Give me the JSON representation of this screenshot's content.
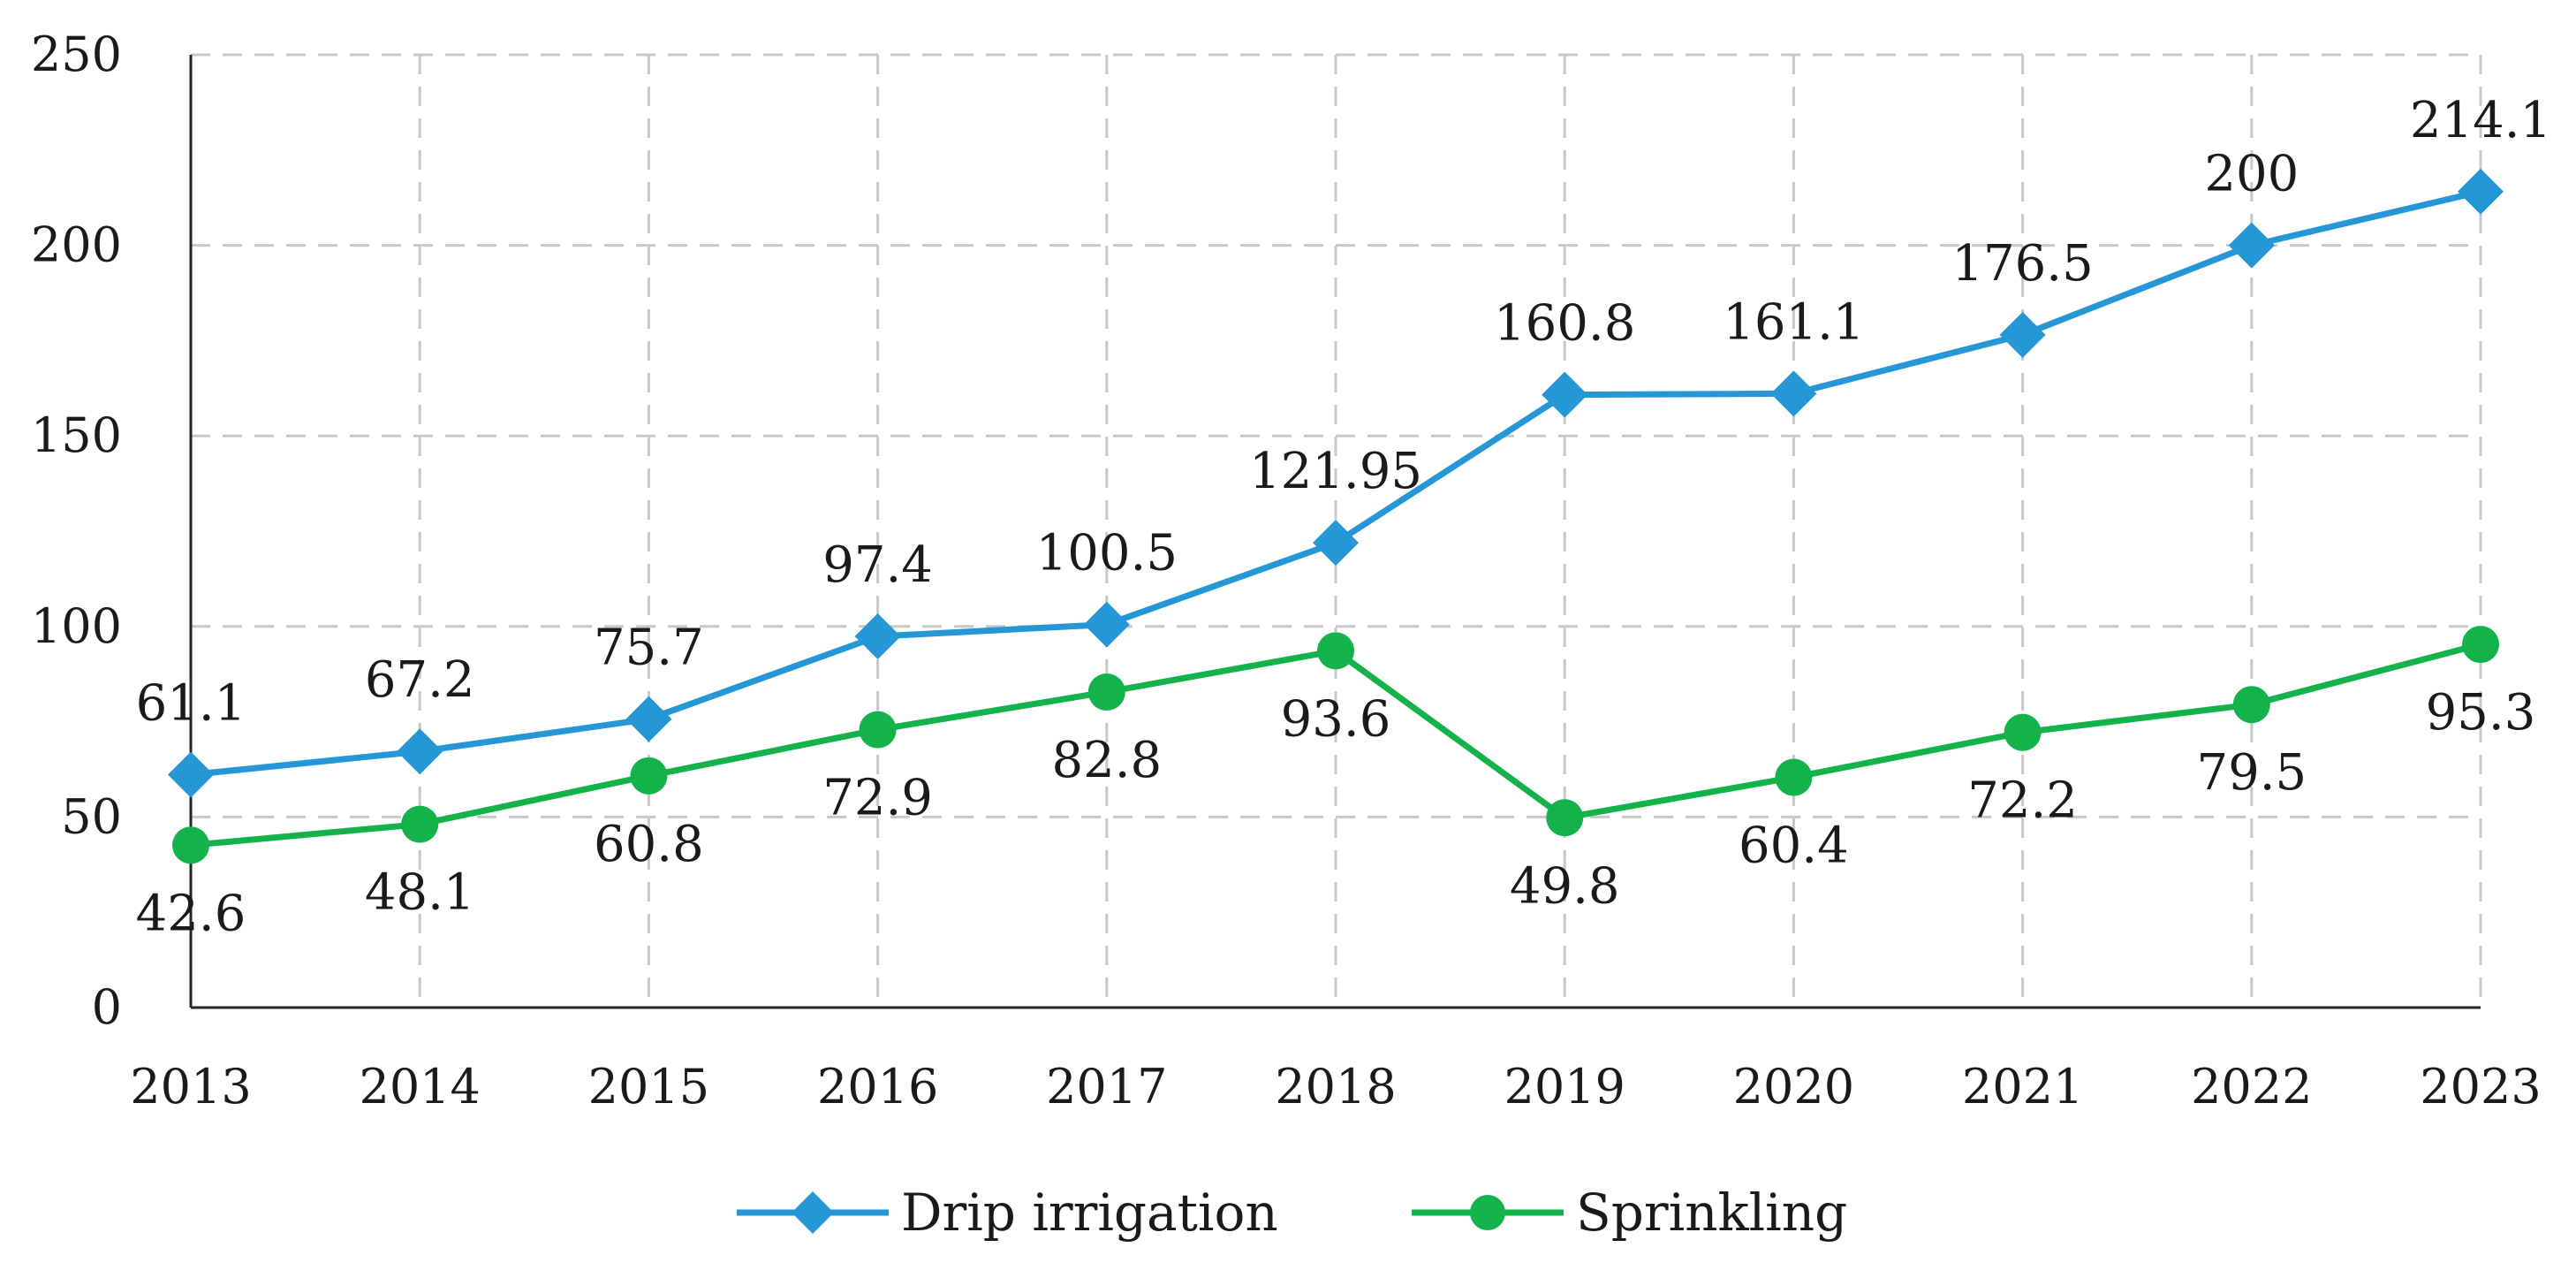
{
  "chart_data": {
    "type": "line",
    "title": "",
    "xlabel": "",
    "ylabel": "",
    "categories": [
      "2013",
      "2014",
      "2015",
      "2016",
      "2017",
      "2018",
      "2019",
      "2020",
      "2021",
      "2022",
      "2023"
    ],
    "ylim": [
      0,
      250
    ],
    "yticks": [
      "0",
      "50",
      "100",
      "150",
      "200",
      "250"
    ],
    "grid": true,
    "legend_position": "bottom",
    "series": [
      {
        "name": "Drip irrigation",
        "color": "#2596d6",
        "marker": "diamond",
        "label_position": "above",
        "values": [
          61.1,
          67.2,
          75.7,
          97.4,
          100.5,
          121.95,
          160.8,
          161.1,
          176.5,
          200,
          214.1
        ],
        "labels": [
          "61.1",
          "67.2",
          "75.7",
          "97.4",
          "100.5",
          "121.95",
          "160.8",
          "161.1",
          "176.5",
          "200",
          "214.1"
        ]
      },
      {
        "name": "Sprinkling",
        "color": "#14b24a",
        "marker": "circle",
        "label_position": "below",
        "values": [
          42.6,
          48.1,
          60.8,
          72.9,
          82.8,
          93.6,
          49.8,
          60.4,
          72.2,
          79.5,
          95.3
        ],
        "labels": [
          "42.6",
          "48.1",
          "60.8",
          "72.9",
          "82.8",
          "93.6",
          "49.8",
          "60.4",
          "72.2",
          "79.5",
          "95.3"
        ]
      }
    ]
  }
}
